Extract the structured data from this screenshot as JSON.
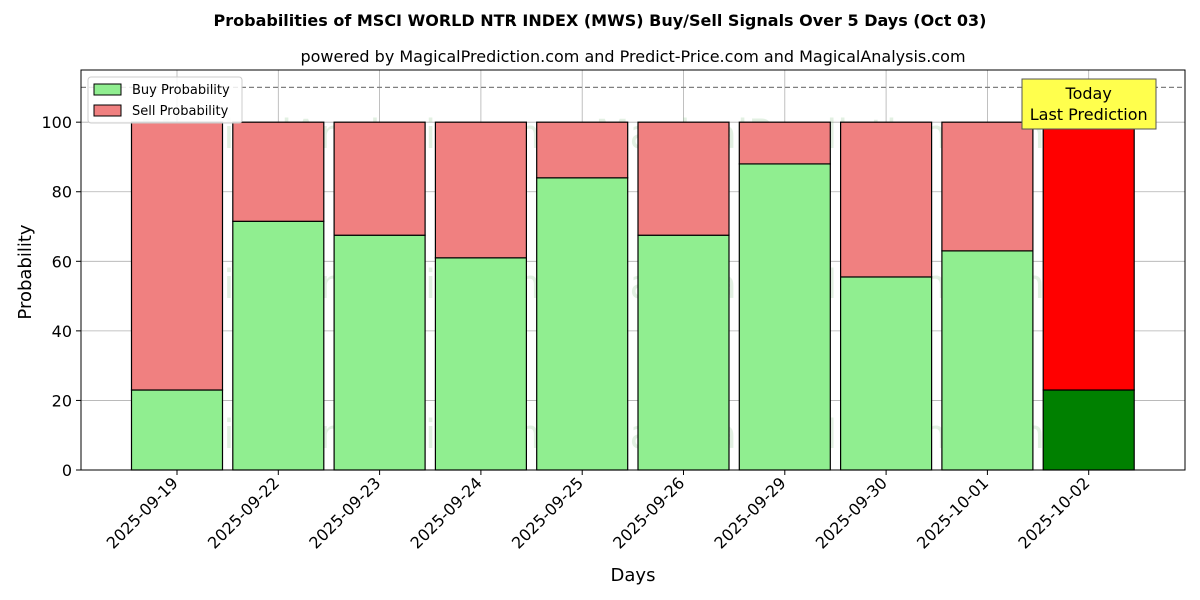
{
  "chart_data": {
    "type": "bar",
    "stacked": true,
    "title": "Probabilities of MSCI WORLD NTR INDEX (MWS) Buy/Sell Signals Over 5 Days (Oct 03)",
    "subtitle": "powered by MagicalPrediction.com and Predict-Price.com and MagicalAnalysis.com",
    "xlabel": "Days",
    "ylabel": "Probability",
    "ylim": [
      0,
      115
    ],
    "yticks": [
      0,
      20,
      40,
      60,
      80,
      100
    ],
    "grid": true,
    "legend_position": "top-left",
    "reference_line": 110,
    "categories": [
      "2025-09-19",
      "2025-09-22",
      "2025-09-23",
      "2025-09-24",
      "2025-09-25",
      "2025-09-26",
      "2025-09-29",
      "2025-09-30",
      "2025-10-01",
      "2025-10-02"
    ],
    "series": [
      {
        "name": "Buy Probability",
        "color": "#90ee90",
        "highlight_color": "#008000",
        "values": [
          23,
          71.5,
          67.5,
          61,
          84,
          67.5,
          88,
          55.5,
          63,
          23
        ]
      },
      {
        "name": "Sell Probability",
        "color": "#f08080",
        "highlight_color": "#ff0000",
        "values": [
          77,
          28.5,
          32.5,
          39,
          16,
          32.5,
          12,
          44.5,
          37,
          77
        ]
      }
    ],
    "highlight_index": 9,
    "annotation": {
      "lines": [
        "Today",
        "Last Prediction"
      ],
      "bg_color": "#ffff4d"
    },
    "watermarks": [
      "MagicalAnalysis.com",
      "MagicalPrediction.com"
    ]
  }
}
